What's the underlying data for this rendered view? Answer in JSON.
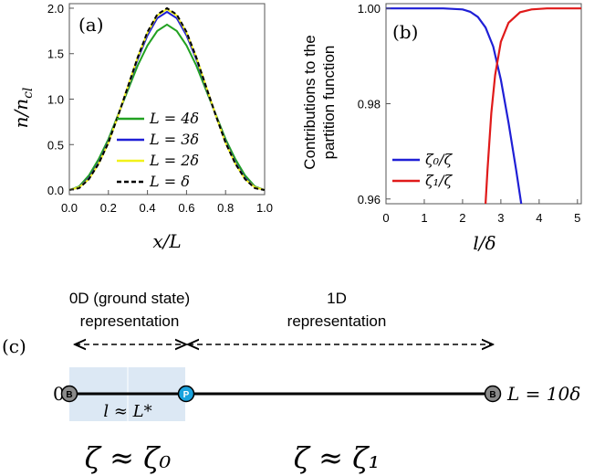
{
  "panel_a": {
    "tag": "(a)",
    "ylabel": "n/n",
    "ylabel_sub": "cl",
    "xlabel": "x/L",
    "xticks": [
      "0.0",
      "0.2",
      "0.4",
      "0.6",
      "0.8",
      "1.0"
    ],
    "yticks": [
      "0.0",
      "0.5",
      "1.0",
      "1.5",
      "2.0"
    ],
    "legend": [
      {
        "label": "L = 4δ",
        "color": "#22a122",
        "dash": false
      },
      {
        "label": "L = 3δ",
        "color": "#1f1fd6",
        "dash": false
      },
      {
        "label": "L = 2δ",
        "color": "#f2f21a",
        "dash": false
      },
      {
        "label": "L =   δ",
        "color": "#000000",
        "dash": true
      }
    ]
  },
  "panel_b": {
    "tag": "(b)",
    "ylabel_line1": "Contributions to the",
    "ylabel_line2": "partition function",
    "xlabel": "l/δ",
    "xticks": [
      "0",
      "1",
      "2",
      "3",
      "4",
      "5"
    ],
    "yticks": [
      "1.00",
      "0.98",
      "0.96"
    ],
    "legend": [
      {
        "label": "ζ₀/ζ",
        "color": "#1f1fd6"
      },
      {
        "label": "ζ₁/ζ",
        "color": "#e01a1a"
      }
    ]
  },
  "panel_c": {
    "tag": "(c)",
    "left_line1": "0D (ground state)",
    "left_line2": "representation",
    "right_line1": "1D",
    "right_line2": "representation",
    "zero_label": "0",
    "end_label": "L = 10δ",
    "bead_b": "B",
    "bead_p": "P",
    "region_label": "l ≈ L*",
    "zeta_left": "ζ ≈ ζ₀",
    "zeta_right": "ζ ≈ ζ₁",
    "colors": {
      "region": "#dce8f4",
      "bead_p": "#1aa3de",
      "bead_b": "#8a8a8a"
    }
  },
  "chart_data": [
    {
      "type": "line",
      "xlabel": "x/L",
      "ylabel": "n/n_cl",
      "xlim": [
        0,
        1
      ],
      "ylim": [
        -0.05,
        2.05
      ],
      "x": [
        0,
        0.05,
        0.1,
        0.15,
        0.2,
        0.25,
        0.3,
        0.35,
        0.4,
        0.45,
        0.5,
        0.55,
        0.6,
        0.65,
        0.7,
        0.75,
        0.8,
        0.85,
        0.9,
        0.95,
        1.0
      ],
      "series": [
        {
          "name": "L = 4δ",
          "values": [
            0.0,
            0.04,
            0.16,
            0.34,
            0.56,
            0.83,
            1.1,
            1.37,
            1.59,
            1.75,
            1.82,
            1.75,
            1.59,
            1.37,
            1.1,
            0.83,
            0.56,
            0.34,
            0.16,
            0.04,
            0.0
          ]
        },
        {
          "name": "L = 3δ",
          "values": [
            0.0,
            0.03,
            0.13,
            0.3,
            0.53,
            0.82,
            1.13,
            1.44,
            1.7,
            1.89,
            1.96,
            1.89,
            1.7,
            1.44,
            1.13,
            0.82,
            0.53,
            0.3,
            0.13,
            0.03,
            0.0
          ]
        },
        {
          "name": "L = 2δ",
          "values": [
            0.0,
            0.03,
            0.12,
            0.29,
            0.52,
            0.82,
            1.14,
            1.46,
            1.73,
            1.92,
            1.99,
            1.92,
            1.73,
            1.46,
            1.14,
            0.82,
            0.52,
            0.29,
            0.12,
            0.03,
            0.0
          ]
        },
        {
          "name": "L = δ",
          "values": [
            0.0,
            0.02,
            0.12,
            0.29,
            0.52,
            0.82,
            1.14,
            1.46,
            1.74,
            1.93,
            2.0,
            1.93,
            1.74,
            1.46,
            1.14,
            0.82,
            0.52,
            0.29,
            0.12,
            0.02,
            0.0
          ]
        }
      ]
    },
    {
      "type": "line",
      "xlabel": "l/δ",
      "ylabel": "Contributions to the partition function",
      "xlim": [
        0,
        5.1
      ],
      "ylim": [
        0.959,
        1.001
      ],
      "series": [
        {
          "name": "ζ₀/ζ",
          "x": [
            0,
            1.5,
            2.0,
            2.2,
            2.4,
            2.6,
            2.8,
            3.0,
            3.2,
            3.4,
            3.55
          ],
          "values": [
            1.0,
            1.0,
            0.9998,
            0.9993,
            0.9982,
            0.996,
            0.992,
            0.985,
            0.976,
            0.966,
            0.958
          ]
        },
        {
          "name": "ζ₁/ζ",
          "x": [
            2.6,
            2.65,
            2.75,
            2.85,
            3.0,
            3.2,
            3.5,
            3.8,
            4.2,
            5.1
          ],
          "values": [
            0.959,
            0.966,
            0.978,
            0.986,
            0.993,
            0.997,
            0.9992,
            0.9998,
            1.0,
            1.0
          ]
        }
      ]
    }
  ]
}
